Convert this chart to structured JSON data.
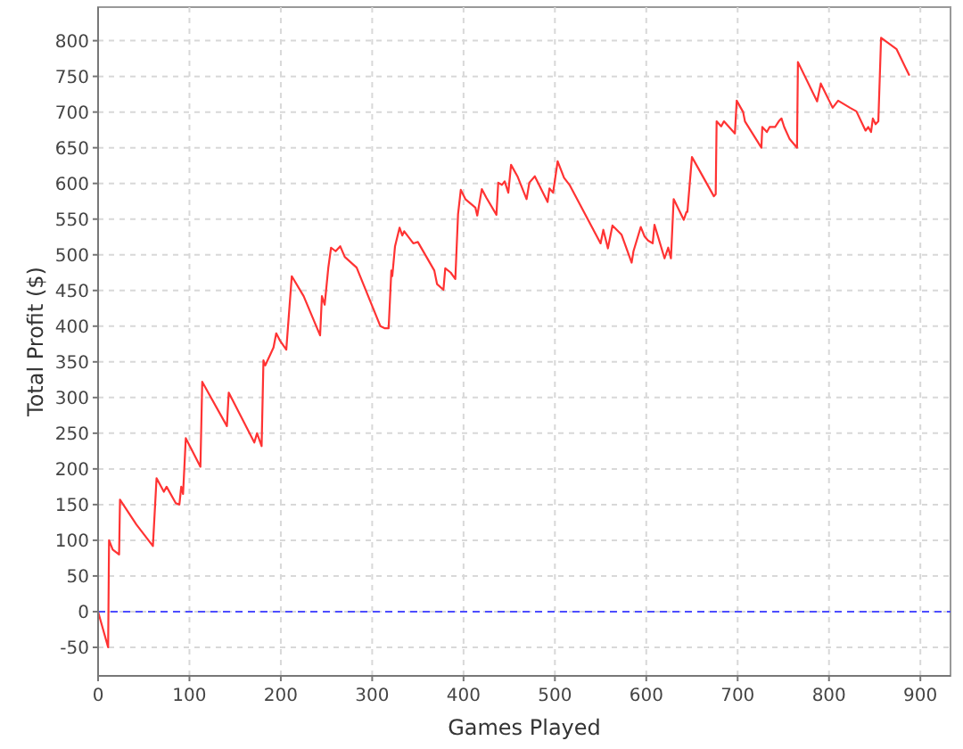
{
  "chart_data": {
    "type": "line",
    "xlabel": "Games Played",
    "ylabel": "Total Profit ($)",
    "xlim": [
      0,
      933
    ],
    "ylim": [
      -90,
      847
    ],
    "xticks": [
      0,
      100,
      200,
      300,
      400,
      500,
      600,
      700,
      800,
      900
    ],
    "yticks": [
      -50,
      0,
      50,
      100,
      150,
      200,
      250,
      300,
      350,
      400,
      450,
      500,
      550,
      600,
      650,
      700,
      750,
      800
    ],
    "grid": true,
    "marker": "none",
    "line_style": "solid",
    "ref_lines": [
      {
        "axis": "y",
        "value": 0,
        "color": "#4d4dff",
        "line_style": "dashed"
      }
    ],
    "series": [
      {
        "color": "#ff3333",
        "x": [
          0,
          11,
          12,
          16,
          23,
          24,
          42,
          60,
          64,
          72,
          75,
          85,
          89,
          91,
          93,
          96,
          112,
          114,
          141,
          143,
          171,
          174,
          179,
          181,
          183,
          192,
          195,
          199,
          206,
          212,
          225,
          243,
          245,
          248,
          252,
          255,
          260,
          265,
          270,
          283,
          309,
          314,
          318,
          321,
          322,
          325,
          330,
          333,
          335,
          345,
          350,
          368,
          371,
          378,
          380,
          386,
          391,
          394,
          397,
          402,
          413,
          415,
          420,
          425,
          436,
          438,
          442,
          445,
          449,
          452,
          459,
          469,
          472,
          478,
          492,
          494,
          498,
          503,
          510,
          516,
          550,
          553,
          558,
          563,
          573,
          584,
          586,
          594,
          598,
          602,
          607,
          609,
          620,
          624,
          627,
          630,
          641,
          644,
          645,
          650,
          657,
          674,
          676,
          677,
          682,
          685,
          697,
          699,
          706,
          708,
          726,
          727,
          732,
          735,
          741,
          745,
          748,
          751,
          757,
          765,
          766,
          787,
          791,
          804,
          810,
          823,
          830,
          840,
          843,
          846,
          848,
          851,
          854,
          857,
          874,
          888
        ],
        "values": [
          0,
          -50,
          100,
          87,
          80,
          157,
          122,
          92,
          187,
          168,
          175,
          152,
          150,
          175,
          165,
          243,
          203,
          322,
          260,
          307,
          237,
          250,
          232,
          352,
          345,
          370,
          390,
          380,
          367,
          470,
          442,
          387,
          442,
          430,
          482,
          510,
          505,
          512,
          497,
          482,
          400,
          397,
          397,
          478,
          470,
          512,
          538,
          527,
          533,
          516,
          518,
          478,
          459,
          451,
          481,
          475,
          466,
          557,
          591,
          578,
          566,
          555,
          592,
          580,
          556,
          601,
          598,
          603,
          587,
          626,
          610,
          578,
          601,
          610,
          574,
          593,
          587,
          631,
          608,
          598,
          516,
          535,
          509,
          541,
          528,
          489,
          505,
          539,
          526,
          520,
          516,
          542,
          495,
          510,
          495,
          578,
          549,
          560,
          560,
          637,
          621,
          582,
          585,
          687,
          680,
          687,
          670,
          716,
          700,
          687,
          650,
          679,
          672,
          679,
          679,
          687,
          691,
          679,
          662,
          650,
          770,
          715,
          740,
          706,
          716,
          706,
          701,
          674,
          679,
          672,
          691,
          683,
          687,
          804,
          788,
          751
        ]
      }
    ]
  }
}
